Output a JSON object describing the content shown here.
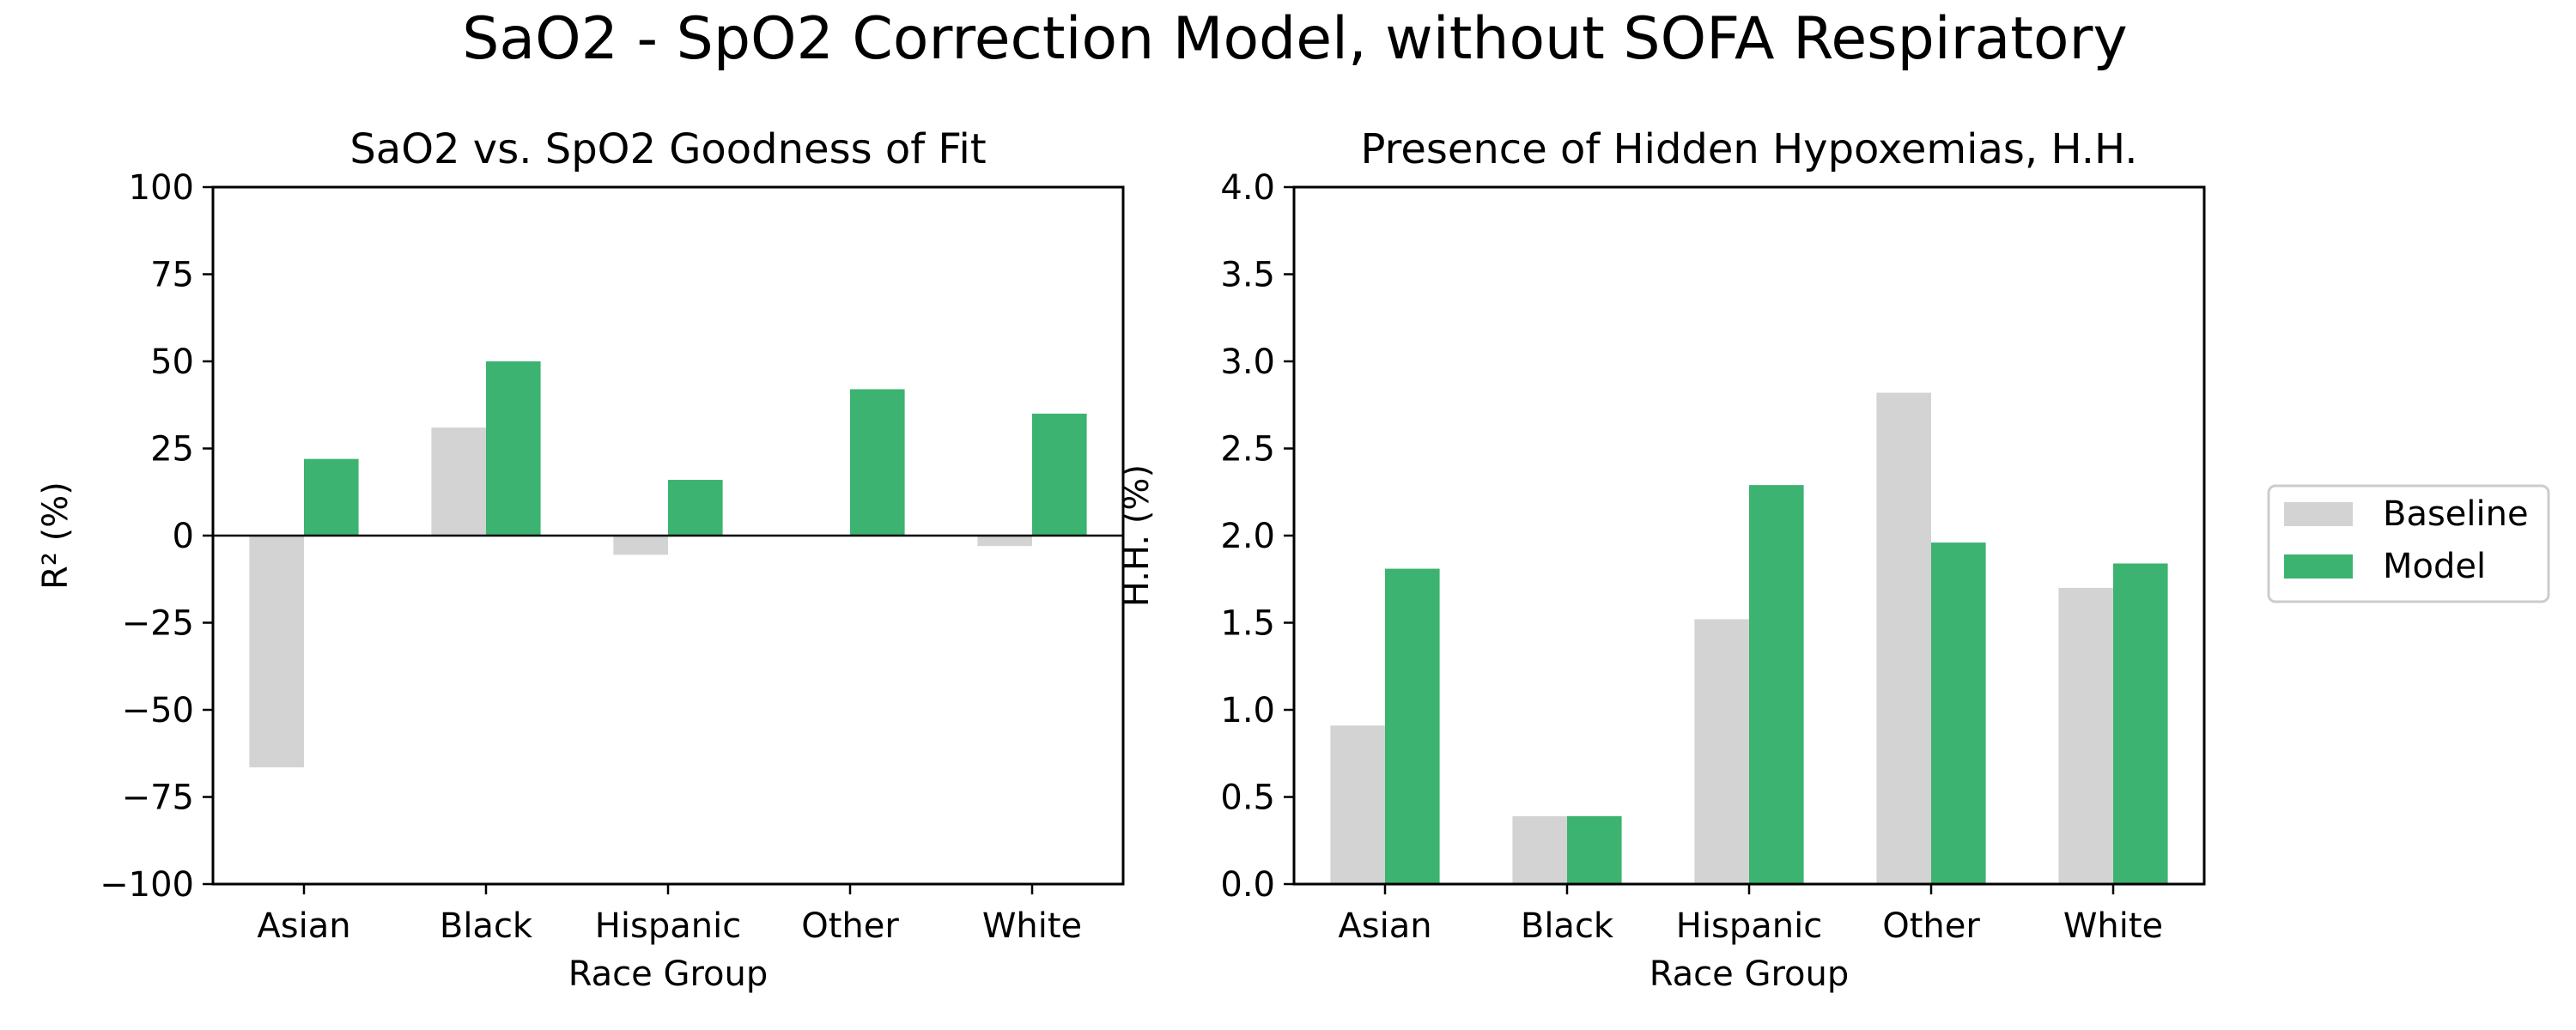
{
  "figure": {
    "title": "SaO2 - SpO2 Correction Model, without SOFA Respiratory"
  },
  "colors": {
    "baseline": "#d3d3d3",
    "model": "#3cb371"
  },
  "legend": {
    "placement": "right",
    "items": [
      "Baseline",
      "Model"
    ]
  },
  "chart_data": [
    {
      "type": "bar",
      "title": "SaO2 vs. SpO2 Goodness of Fit",
      "xlabel": "Race Group",
      "ylabel": "R² (%)",
      "categories": [
        "Asian",
        "Black",
        "Hispanic",
        "Other",
        "White"
      ],
      "ylim": [
        -100,
        100
      ],
      "yticks": [
        100,
        75,
        50,
        25,
        0,
        -25,
        -50,
        -75,
        -100
      ],
      "ytick_labels": [
        "100",
        "75",
        "50",
        "25",
        "0",
        "−25",
        "−50",
        "−75",
        "−100"
      ],
      "zero_line": true,
      "series": [
        {
          "name": "Baseline",
          "values": [
            -66.5,
            31,
            -5.5,
            0,
            -3
          ]
        },
        {
          "name": "Model",
          "values": [
            22,
            50,
            16,
            42,
            35
          ]
        }
      ]
    },
    {
      "type": "bar",
      "title": "Presence of Hidden Hypoxemias, H.H.",
      "xlabel": "Race Group",
      "ylabel": "H.H. (%)",
      "categories": [
        "Asian",
        "Black",
        "Hispanic",
        "Other",
        "White"
      ],
      "ylim": [
        0,
        4
      ],
      "yticks": [
        4.0,
        3.5,
        3.0,
        2.5,
        2.0,
        1.5,
        1.0,
        0.5,
        0.0
      ],
      "ytick_labels": [
        "4.0",
        "3.5",
        "3.0",
        "2.5",
        "2.0",
        "1.5",
        "1.0",
        "0.5",
        "0.0"
      ],
      "zero_line": false,
      "series": [
        {
          "name": "Baseline",
          "values": [
            0.91,
            0.39,
            1.52,
            2.82,
            1.7
          ]
        },
        {
          "name": "Model",
          "values": [
            1.81,
            0.39,
            2.29,
            1.96,
            1.84
          ]
        }
      ]
    }
  ]
}
